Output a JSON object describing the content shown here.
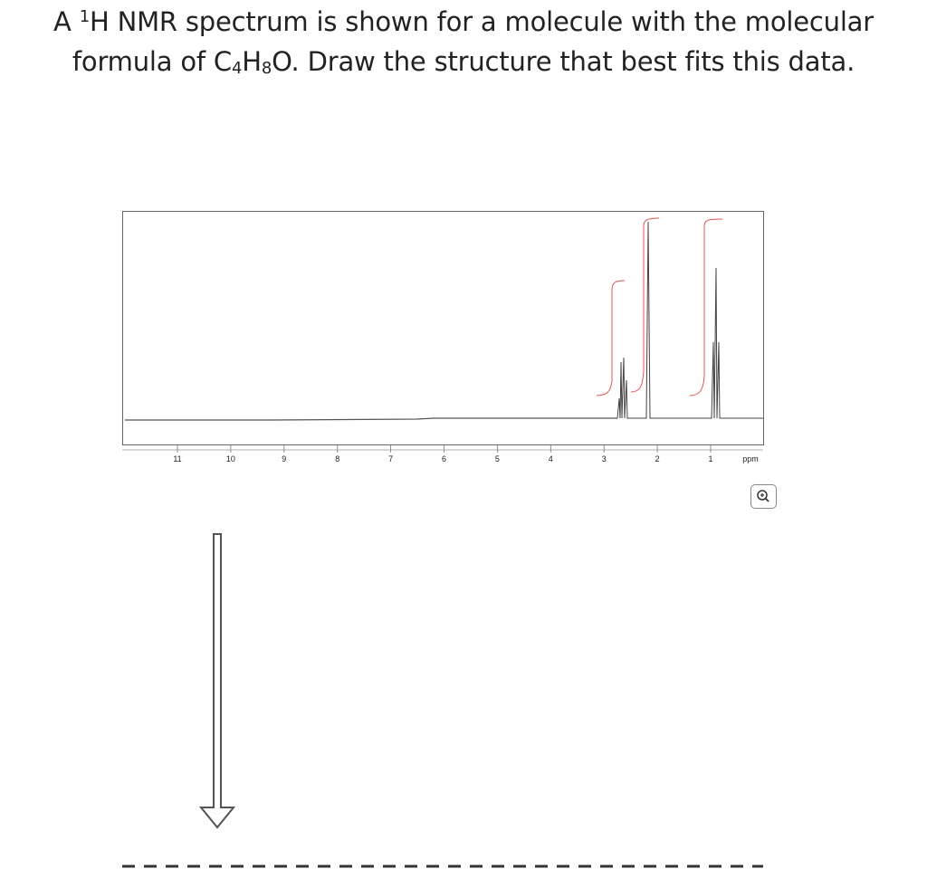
{
  "question": {
    "prefix": "A ",
    "superscript": "1",
    "text1": "H NMR spectrum is shown for a molecule with the molecular formula of C",
    "sub1": "4",
    "text2": "H",
    "sub2": "8",
    "text3": "O. Draw the structure that best fits this data."
  },
  "spectrum": {
    "axis_labels": [
      11,
      10,
      9,
      8,
      7,
      6,
      5,
      4,
      3,
      2,
      1
    ],
    "unit": "ppm"
  }
}
